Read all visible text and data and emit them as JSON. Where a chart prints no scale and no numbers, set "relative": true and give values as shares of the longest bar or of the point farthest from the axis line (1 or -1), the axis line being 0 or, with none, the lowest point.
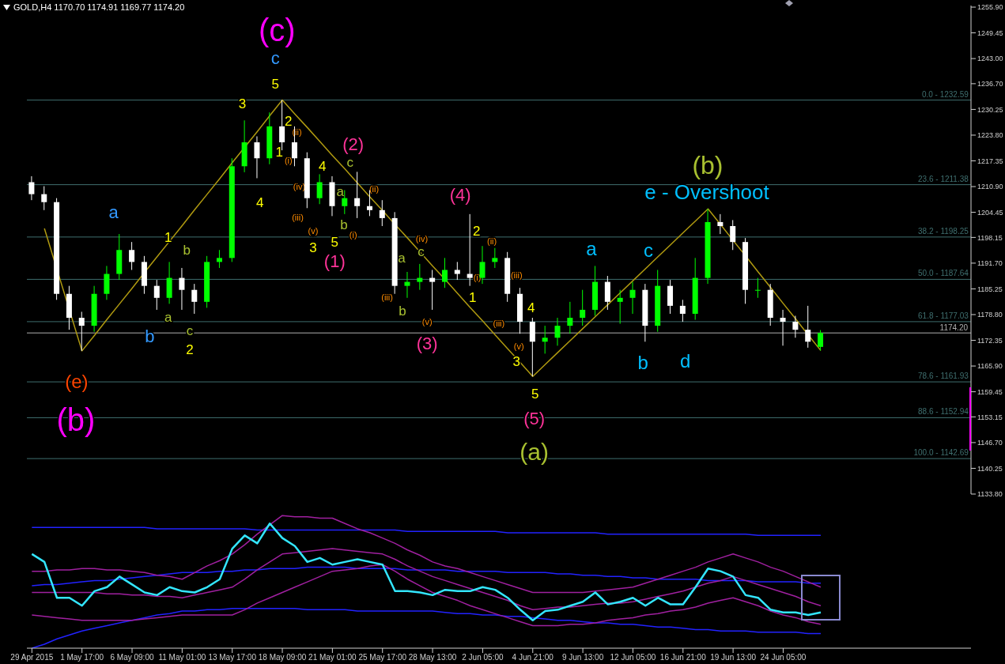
{
  "chart_data": [
    {
      "type": "candlestick",
      "title": "GOLD,H4  1170.70 1174.91 1169.77 1174.20",
      "tick_labels": "y",
      "colors": [
        "#ffffff",
        "#ffffff",
        "#ffffff",
        "#ffffff",
        "#ffffff",
        "#00ff00",
        "#00ff00",
        "#00ff00",
        "#ffffff",
        "#ffffff",
        "#ffffff",
        "#00ff00",
        "#ffffff",
        "#ffffff",
        "#00ff00",
        "#00ff00",
        "#00ff00",
        "#00ff00",
        "#ffffff",
        "#00ff00",
        "#ffffff",
        "#ffffff",
        "#ffffff",
        "#00ff00",
        "#ffffff",
        "#00ff00",
        "#ffffff",
        "#ffffff",
        "#ffffff",
        "#ffffff",
        "#00ff00",
        "#00ff00",
        "#ffffff",
        "#00ff00",
        "#ffffff",
        "#ffffff",
        "#00ff00",
        "#00ff00",
        "#ffffff",
        "#ffffff",
        "#ffffff",
        "#00ff00",
        "#00ff00",
        "#00ff00",
        "#00ff00",
        "#00ff00",
        "#ffffff",
        "#00ff00",
        "#00ff00",
        "#ffffff",
        "#00ff00",
        "#ffffff",
        "#ffffff",
        "#00ff00",
        "#00ff00",
        "#ffffff",
        "#ffffff",
        "#ffffff",
        "#00ff00",
        "#ffffff",
        "#ffffff",
        "#ffffff",
        "#ffffff",
        "#00ff00"
      ],
      "categories": [
        null,
        null,
        null,
        null,
        null,
        null,
        null,
        null,
        null,
        null,
        null,
        null,
        null,
        null,
        null,
        null,
        null,
        null,
        null,
        null,
        null,
        null,
        null,
        null,
        null,
        null,
        null,
        null,
        null,
        null,
        null,
        null,
        null,
        null,
        null,
        null,
        null,
        null,
        null,
        null,
        null,
        null,
        null,
        null,
        null,
        null,
        null,
        null,
        null,
        null,
        null,
        null,
        null,
        null,
        null,
        null,
        null,
        null,
        null,
        null,
        null,
        null,
        null,
        null
      ],
      "ohlc": [
        [
          1212,
          1213.5,
          1207.5,
          1209
        ],
        [
          1209,
          1211,
          1205,
          1207
        ],
        [
          1207,
          1208,
          1182.5,
          1184
        ],
        [
          1184,
          1186,
          1175,
          1178
        ],
        [
          1178,
          1179.5,
          1169.7,
          1176
        ],
        [
          1176,
          1186,
          1174.5,
          1184
        ],
        [
          1184,
          1191,
          1182.5,
          1189
        ],
        [
          1189,
          1199,
          1187.5,
          1195
        ],
        [
          1195,
          1197,
          1190,
          1192
        ],
        [
          1192,
          1193.5,
          1184,
          1186
        ],
        [
          1186,
          1187.5,
          1180,
          1183
        ],
        [
          1183,
          1192,
          1181.5,
          1188
        ],
        [
          1188,
          1190.5,
          1180,
          1185
        ],
        [
          1185,
          1186.5,
          1179,
          1182
        ],
        [
          1182,
          1193.5,
          1180.5,
          1192
        ],
        [
          1192,
          1195,
          1190.5,
          1193
        ],
        [
          1193,
          1218,
          1192,
          1216
        ],
        [
          1216,
          1227.5,
          1214.5,
          1222
        ],
        [
          1222,
          1223.5,
          1213,
          1218
        ],
        [
          1218,
          1229.5,
          1216.5,
          1226
        ],
        [
          1226,
          1232.6,
          1220,
          1222
        ],
        [
          1222,
          1226,
          1216,
          1218
        ],
        [
          1218,
          1219.5,
          1205.5,
          1208
        ],
        [
          1208,
          1214,
          1206.5,
          1212
        ],
        [
          1212,
          1213.5,
          1203.5,
          1206
        ],
        [
          1206,
          1210,
          1204,
          1208
        ],
        [
          1208,
          1214.6,
          1203,
          1206
        ],
        [
          1206,
          1210,
          1203.5,
          1205
        ],
        [
          1205,
          1207.5,
          1201,
          1203
        ],
        [
          1203,
          1204.5,
          1184,
          1186
        ],
        [
          1186,
          1189.5,
          1183,
          1187
        ],
        [
          1187,
          1191.5,
          1185,
          1188
        ],
        [
          1188,
          1190,
          1180,
          1187
        ],
        [
          1187,
          1193,
          1185.5,
          1190
        ],
        [
          1190,
          1192,
          1187.5,
          1189
        ],
        [
          1189,
          1204,
          1186,
          1188
        ],
        [
          1188,
          1196,
          1186.5,
          1192
        ],
        [
          1192,
          1195.5,
          1190.5,
          1193
        ],
        [
          1193,
          1194.5,
          1182,
          1184
        ],
        [
          1184,
          1185.5,
          1174,
          1177
        ],
        [
          1177,
          1178,
          1163.3,
          1172
        ],
        [
          1172,
          1176,
          1169,
          1173
        ],
        [
          1173,
          1178,
          1171,
          1176
        ],
        [
          1176,
          1182,
          1174,
          1178
        ],
        [
          1178,
          1185,
          1176,
          1180
        ],
        [
          1180,
          1191,
          1178.5,
          1187
        ],
        [
          1187,
          1188.5,
          1180,
          1182
        ],
        [
          1182,
          1185,
          1176.5,
          1183
        ],
        [
          1183,
          1187,
          1179,
          1185
        ],
        [
          1185,
          1186.5,
          1172,
          1176
        ],
        [
          1176,
          1190,
          1174.5,
          1186
        ],
        [
          1186,
          1187.5,
          1179,
          1181
        ],
        [
          1181,
          1182.5,
          1177,
          1179
        ],
        [
          1179,
          1193,
          1177.5,
          1188
        ],
        [
          1188,
          1205.3,
          1186.5,
          1202
        ],
        [
          1202,
          1204,
          1199,
          1201
        ],
        [
          1201,
          1202.5,
          1195,
          1197
        ],
        [
          1197,
          1198,
          1181.5,
          1185
        ],
        [
          1185,
          1188,
          1183,
          1185
        ],
        [
          1185,
          1186.5,
          1176,
          1178
        ],
        [
          1178,
          1180,
          1171,
          1177
        ],
        [
          1177,
          1178.5,
          1173,
          1175
        ],
        [
          1175,
          1181,
          1170.5,
          1172
        ],
        [
          1170.7,
          1174.91,
          1169.77,
          1174.2
        ]
      ],
      "series": [
        {
          "type": "line",
          "color": "#b09a10",
          "values": [
            null,
            1200.4,
            null,
            null,
            1169.7,
            1173.6,
            1177.6,
            1181.5,
            1185.4,
            1189.4,
            1193.3,
            1197.2,
            1201.1,
            1205.1,
            1209.0,
            1212.9,
            1216.9,
            null,
            1224.7,
            1228.7,
            1232.6,
            1229.1,
            1225.7,
            1222.2,
            1218.7,
            1215.3,
            1211.8,
            1208.3,
            1204.9,
            1201.4,
            1198.0,
            1194.5,
            1191.0,
            1187.6,
            1184.1,
            1180.6,
            1177.2,
            1173.7,
            1170.2,
            1166.8,
            1163.3,
            1166.3,
            1169.3,
            1172.3,
            1175.3,
            1178.3,
            1181.3,
            1184.3,
            1187.3,
            1190.3,
            1193.3,
            1196.3,
            1199.3,
            1202.3,
            1205.3,
            1201.4,
            1197.4,
            1193.5,
            1189.5,
            1185.6,
            1181.6,
            1177.7,
            1173.7,
            1169.8
          ]
        }
      ],
      "ylim": [
        1133.8,
        1256.3
      ],
      "yticks": [
        {
          "value": 1255.9,
          "label": "1255.90"
        },
        {
          "value": 1249.45,
          "label": "1249.45"
        },
        {
          "value": 1243,
          "label": "1243.00"
        },
        {
          "value": 1236.7,
          "label": "1236.70"
        },
        {
          "value": 1230.25,
          "label": "1230.25"
        },
        {
          "value": 1223.8,
          "label": "1223.80"
        },
        {
          "value": 1217.35,
          "label": "1217.35"
        },
        {
          "value": 1210.9,
          "label": "1210.90"
        },
        {
          "value": 1204.45,
          "label": "1204.45"
        },
        {
          "value": 1198.15,
          "label": "1198.15"
        },
        {
          "value": 1191.7,
          "label": "1191.70"
        },
        {
          "value": 1185.25,
          "label": "1185.25"
        },
        {
          "value": 1178.8,
          "label": "1178.80"
        },
        {
          "value": 1172.35,
          "label": "1172.35"
        },
        {
          "value": 1165.9,
          "label": "1165.90"
        },
        {
          "value": 1159.45,
          "label": "1159.45"
        },
        {
          "value": 1153.15,
          "label": "1153.15"
        },
        {
          "value": 1146.7,
          "label": "1146.70"
        },
        {
          "value": 1140.25,
          "label": "1140.25"
        },
        {
          "value": 1133.8,
          "label": "1133.80"
        }
      ],
      "ref_lines": [
        {
          "axis": "y",
          "value": 1232.59,
          "color": "#3f6f6f"
        },
        {
          "axis": "y",
          "value": 1211.38,
          "color": "#3f6f6f"
        },
        {
          "axis": "y",
          "value": 1198.25,
          "color": "#3f6f6f"
        },
        {
          "axis": "y",
          "value": 1187.64,
          "color": "#3f6f6f"
        },
        {
          "axis": "y",
          "value": 1177.03,
          "color": "#3f6f6f"
        },
        {
          "axis": "y",
          "value": 1174.2,
          "label": "1174.20",
          "color": "#b0b0b0"
        },
        {
          "axis": "y",
          "value": 1161.93,
          "color": "#3f6f6f"
        },
        {
          "axis": "y",
          "value": 1152.94,
          "color": "#3f6f6f"
        },
        {
          "axis": "y",
          "value": 1142.69,
          "color": "#3f6f6f"
        }
      ],
      "annotations": [
        "(c)",
        "c",
        "5",
        "3",
        "2",
        "(ii)",
        "1",
        "(i)",
        "4",
        "4",
        "(iv)",
        "a",
        "(iii)",
        "b",
        "(v)",
        "5",
        "(i)",
        "3",
        "(1)",
        "(2)",
        "c",
        "(ii)",
        "(iv)",
        "c",
        "a",
        "(iii)",
        "b",
        "(v)",
        "(3)",
        "(4)",
        "2",
        "(ii)",
        "(i)",
        "1",
        "(iii)",
        "(iii)",
        "4",
        "(v)",
        "3",
        "5",
        "(5)",
        "(a)",
        "a",
        "1",
        "b",
        "a",
        "b",
        "c",
        "2",
        "(e)",
        "(b)",
        "a",
        "c",
        "b",
        "d",
        "(b)",
        "e - Overshoot",
        {
          "text": "0.0 - 1232.59",
          "y": 1232.59
        },
        {
          "text": "23.6 - 1211.38",
          "y": 1211.38
        },
        {
          "text": "38.2 - 1198.25",
          "y": 1198.25
        },
        {
          "text": "50.0 - 1187.64",
          "y": 1187.64
        },
        {
          "text": "61.8 - 1177.03",
          "y": 1177.03
        },
        {
          "text": "78.6 - 1161.93",
          "y": 1161.93
        },
        {
          "text": "88.6 - 1152.94",
          "y": 1152.94
        },
        {
          "text": "100.0 - 1142.69",
          "y": 1142.69
        }
      ]
    },
    {
      "type": "line",
      "relative": true,
      "tick_labels": "x",
      "categories": [
        "29 Apr 2015",
        null,
        null,
        null,
        "1 May 17:00",
        null,
        null,
        null,
        "6 May 09:00",
        null,
        null,
        null,
        "11 May 01:00",
        null,
        null,
        null,
        "13 May 17:00",
        null,
        null,
        null,
        "18 May 09:00",
        null,
        null,
        null,
        "21 May 01:00",
        null,
        null,
        null,
        "25 May 17:00",
        null,
        null,
        null,
        "28 May 13:00",
        null,
        null,
        null,
        "2 Jun 05:00",
        null,
        null,
        null,
        "4 Jun 21:00",
        null,
        null,
        null,
        "9 Jun 13:00",
        null,
        null,
        null,
        "12 Jun 05:00",
        null,
        null,
        null,
        "16 Jun 21:00",
        null,
        null,
        null,
        "19 Jun 13:00",
        null,
        null,
        null,
        "24 Jun 05:00",
        null,
        null,
        null
      ],
      "series": [
        {
          "color": "#2222ff",
          "values": [
            0.91,
            0.91,
            0.91,
            0.91,
            0.91,
            0.91,
            0.91,
            0.91,
            0.91,
            0.91,
            0.9,
            0.9,
            0.9,
            0.9,
            0.9,
            0.9,
            0.9,
            0.9,
            0.89,
            0.89,
            0.89,
            0.89,
            0.89,
            0.89,
            0.89,
            0.89,
            0.89,
            0.89,
            0.89,
            0.89,
            0.88,
            0.88,
            0.88,
            0.88,
            0.88,
            0.88,
            0.88,
            0.88,
            0.87,
            0.87,
            0.87,
            0.87,
            0.87,
            0.87,
            0.87,
            0.87,
            0.86,
            0.86,
            0.86,
            0.86,
            0.86,
            0.86,
            0.86,
            0.86,
            0.86,
            0.86,
            0.86,
            0.86,
            0.85,
            0.85,
            0.85,
            0.85,
            0.85,
            0.85
          ]
        },
        {
          "color": "#2222ff",
          "values": [
            0.47,
            0.48,
            0.48,
            0.49,
            0.5,
            0.51,
            0.51,
            0.52,
            0.53,
            0.54,
            0.55,
            0.56,
            0.57,
            0.57,
            0.57,
            0.58,
            0.58,
            0.59,
            0.59,
            0.6,
            0.6,
            0.6,
            0.61,
            0.61,
            0.61,
            0.61,
            0.6,
            0.6,
            0.6,
            0.6,
            0.59,
            0.59,
            0.59,
            0.59,
            0.58,
            0.58,
            0.58,
            0.58,
            0.57,
            0.57,
            0.57,
            0.57,
            0.56,
            0.56,
            0.55,
            0.55,
            0.54,
            0.54,
            0.53,
            0.53,
            0.52,
            0.52,
            0.52,
            0.52,
            0.51,
            0.51,
            0.51,
            0.51,
            0.5,
            0.5,
            0.5,
            0.5,
            0.49,
            0.49
          ]
        },
        {
          "color": "#2222ff",
          "values": [
            0,
            0.03,
            0.07,
            0.1,
            0.13,
            0.15,
            0.17,
            0.19,
            0.21,
            0.23,
            0.25,
            0.26,
            0.28,
            0.28,
            0.29,
            0.29,
            0.3,
            0.3,
            0.3,
            0.3,
            0.3,
            0.3,
            0.29,
            0.29,
            0.29,
            0.29,
            0.28,
            0.28,
            0.28,
            0.28,
            0.28,
            0.28,
            0.28,
            0.27,
            0.26,
            0.26,
            0.25,
            0.25,
            0.24,
            0.24,
            0.23,
            0.22,
            0.21,
            0.21,
            0.2,
            0.19,
            0.19,
            0.18,
            0.18,
            0.17,
            0.16,
            0.16,
            0.15,
            0.14,
            0.14,
            0.13,
            0.13,
            0.13,
            0.12,
            0.12,
            0.12,
            0.12,
            0.11,
            0.11
          ]
        },
        {
          "color": "#a020a0",
          "values": [
            0.58,
            0.58,
            0.59,
            0.59,
            0.6,
            0.6,
            0.59,
            0.59,
            0.58,
            0.57,
            0.55,
            0.54,
            0.52,
            0.57,
            0.62,
            0.66,
            0.71,
            0.78,
            0.86,
            0.93,
            1,
            0.99,
            0.99,
            0.98,
            0.98,
            0.94,
            0.9,
            0.87,
            0.83,
            0.79,
            0.74,
            0.7,
            0.65,
            0.62,
            0.6,
            0.57,
            0.54,
            0.51,
            0.48,
            0.45,
            0.42,
            0.42,
            0.42,
            0.42,
            0.42,
            0.43,
            0.44,
            0.45,
            0.46,
            0.49,
            0.52,
            0.55,
            0.58,
            0.61,
            0.65,
            0.68,
            0.71,
            0.68,
            0.65,
            0.61,
            0.58,
            0.54,
            0.5,
            0.46
          ]
        },
        {
          "color": "#a020a0",
          "values": [
            0.42,
            0.42,
            0.42,
            0.42,
            0.42,
            0.42,
            0.41,
            0.41,
            0.4,
            0.4,
            0.39,
            0.39,
            0.38,
            0.4,
            0.42,
            0.44,
            0.46,
            0.52,
            0.59,
            0.65,
            0.71,
            0.72,
            0.73,
            0.74,
            0.75,
            0.74,
            0.73,
            0.72,
            0.71,
            0.67,
            0.62,
            0.58,
            0.54,
            0.51,
            0.48,
            0.45,
            0.42,
            0.39,
            0.36,
            0.32,
            0.29,
            0.3,
            0.31,
            0.31,
            0.32,
            0.33,
            0.34,
            0.34,
            0.35,
            0.37,
            0.39,
            0.41,
            0.43,
            0.46,
            0.49,
            0.51,
            0.54,
            0.51,
            0.48,
            0.45,
            0.42,
            0.39,
            0.35,
            0.32
          ]
        },
        {
          "color": "#a020a0",
          "values": [
            0.25,
            0.24,
            0.23,
            0.22,
            0.21,
            0.21,
            0.21,
            0.21,
            0.21,
            0.22,
            0.23,
            0.24,
            0.25,
            0.25,
            0.25,
            0.25,
            0.25,
            0.29,
            0.34,
            0.38,
            0.42,
            0.46,
            0.5,
            0.54,
            0.58,
            0.59,
            0.6,
            0.62,
            0.63,
            0.58,
            0.52,
            0.47,
            0.42,
            0.39,
            0.36,
            0.32,
            0.29,
            0.26,
            0.23,
            0.2,
            0.17,
            0.17,
            0.17,
            0.18,
            0.18,
            0.19,
            0.21,
            0.22,
            0.23,
            0.25,
            0.26,
            0.28,
            0.29,
            0.31,
            0.34,
            0.36,
            0.38,
            0.35,
            0.32,
            0.28,
            0.25,
            0.23,
            0.2,
            0.18
          ]
        },
        {
          "color": "#33e6ff",
          "values": [
            0.71,
            0.65,
            0.38,
            0.38,
            0.32,
            0.43,
            0.46,
            0.54,
            0.48,
            0.42,
            0.4,
            0.46,
            0.43,
            0.42,
            0.46,
            0.52,
            0.75,
            0.85,
            0.79,
            0.94,
            0.83,
            0.77,
            0.65,
            0.68,
            0.63,
            0.65,
            0.67,
            0.65,
            0.63,
            0.43,
            0.43,
            0.42,
            0.4,
            0.44,
            0.43,
            0.43,
            0.46,
            0.44,
            0.38,
            0.29,
            0.21,
            0.28,
            0.29,
            0.32,
            0.35,
            0.42,
            0.33,
            0.35,
            0.38,
            0.32,
            0.38,
            0.33,
            0.33,
            0.46,
            0.6,
            0.58,
            0.54,
            0.4,
            0.38,
            0.29,
            0.27,
            0.27,
            0.25,
            0.27
          ]
        }
      ]
    }
  ]
}
